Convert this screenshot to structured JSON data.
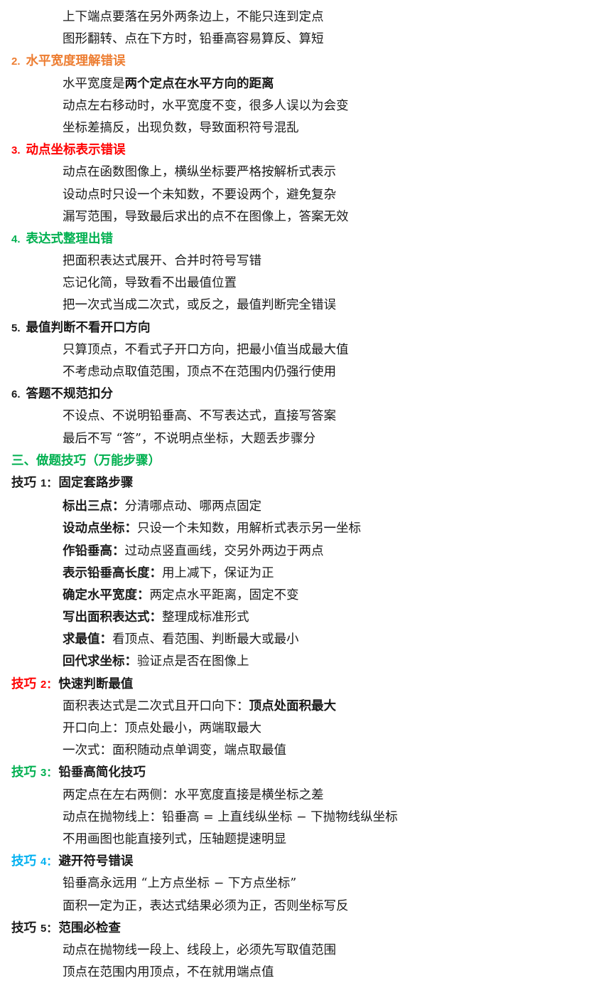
{
  "colors": {
    "orange": "#ED7D31",
    "red": "#FF0000",
    "green": "#00B050",
    "blue": "#00B0F0",
    "black": "#1a1a1a"
  },
  "lines": [
    {
      "kind": "body",
      "segs": [
        {
          "t": "上下端点要落在另外两条边上，不能只连到定点"
        }
      ]
    },
    {
      "kind": "body",
      "segs": [
        {
          "t": "图形翻转、点在下方时，铅垂高容易算反、算短"
        }
      ]
    },
    {
      "kind": "head",
      "color": "orange",
      "num": "2.",
      "segs": [
        {
          "t": "水平宽度理解错误"
        }
      ]
    },
    {
      "kind": "body",
      "segs": [
        {
          "t": "水平宽度是"
        },
        {
          "t": "两个定点在水平方向的距离",
          "b": true
        }
      ]
    },
    {
      "kind": "body",
      "segs": [
        {
          "t": "动点左右移动时，水平宽度不变，很多人误以为会变"
        }
      ]
    },
    {
      "kind": "body",
      "segs": [
        {
          "t": "坐标差搞反，出现负数，导致面积符号混乱"
        }
      ]
    },
    {
      "kind": "head",
      "color": "red",
      "num": "3.",
      "segs": [
        {
          "t": "动点坐标表示错误"
        }
      ]
    },
    {
      "kind": "body",
      "segs": [
        {
          "t": "动点在函数图像上，横纵坐标要严格按解析式表示"
        }
      ]
    },
    {
      "kind": "body",
      "segs": [
        {
          "t": "设动点时只设一个未知数，不要设两个，避免复杂"
        }
      ]
    },
    {
      "kind": "body",
      "segs": [
        {
          "t": "漏写范围，导致最后求出的点不在图像上，答案无效"
        }
      ]
    },
    {
      "kind": "head",
      "color": "green",
      "num": "4.",
      "segs": [
        {
          "t": "表达式整理出错"
        }
      ]
    },
    {
      "kind": "body",
      "segs": [
        {
          "t": "把面积表达式展开、合并时符号写错"
        }
      ]
    },
    {
      "kind": "body",
      "segs": [
        {
          "t": "忘记化简，导致看不出最值位置"
        }
      ]
    },
    {
      "kind": "body",
      "segs": [
        {
          "t": "把一次式当成二次式，或反之，最值判断完全错误"
        }
      ]
    },
    {
      "kind": "head",
      "color": "black",
      "num": "5.",
      "segs": [
        {
          "t": "最值判断不看开口方向"
        }
      ]
    },
    {
      "kind": "body",
      "segs": [
        {
          "t": "只算顶点，不看式子开口方向，把最小值当成最大值"
        }
      ]
    },
    {
      "kind": "body",
      "segs": [
        {
          "t": "不考虑动点取值范围，顶点不在范围内仍强行使用"
        }
      ]
    },
    {
      "kind": "head",
      "color": "black",
      "num": "6.",
      "segs": [
        {
          "t": "答题不规范扣分"
        }
      ]
    },
    {
      "kind": "body",
      "segs": [
        {
          "t": "不设点、不说明铅垂高、不写表达式，直接写答案"
        }
      ]
    },
    {
      "kind": "body",
      "segs": [
        {
          "t": "最后不写 “答”，不说明点坐标，大题丢步骤分"
        }
      ]
    },
    {
      "kind": "head",
      "color": "green",
      "segs": [
        {
          "t": "三、做题技巧（万能步骤）",
          "c": "green"
        }
      ]
    },
    {
      "kind": "head",
      "color": "black",
      "label": "技巧",
      "num": "1：",
      "gap": true,
      "segs": [
        {
          "t": "固定套路步骤"
        }
      ]
    },
    {
      "kind": "body",
      "segs": [
        {
          "t": "标出三点：",
          "b": true
        },
        {
          "t": "分清哪点动、哪两点固定"
        }
      ]
    },
    {
      "kind": "body",
      "segs": [
        {
          "t": "设动点坐标：",
          "b": true
        },
        {
          "t": "只设一个未知数，用解析式表示另一坐标"
        }
      ]
    },
    {
      "kind": "body",
      "segs": [
        {
          "t": "作铅垂高：",
          "b": true
        },
        {
          "t": "过动点竖直画线，交另外两边于两点"
        }
      ]
    },
    {
      "kind": "body",
      "segs": [
        {
          "t": "表示铅垂高长度：",
          "b": true
        },
        {
          "t": "用上减下，保证为正"
        }
      ]
    },
    {
      "kind": "body",
      "segs": [
        {
          "t": "确定水平宽度：",
          "b": true
        },
        {
          "t": "两定点水平距离，固定不变"
        }
      ]
    },
    {
      "kind": "body",
      "segs": [
        {
          "t": "写出面积表达式：",
          "b": true
        },
        {
          "t": "整理成标准形式"
        }
      ]
    },
    {
      "kind": "body",
      "segs": [
        {
          "t": "求最值：",
          "b": true
        },
        {
          "t": "看顶点、看范围、判断最大或最小"
        }
      ]
    },
    {
      "kind": "body",
      "segs": [
        {
          "t": "回代求坐标：",
          "b": true
        },
        {
          "t": "验证点是否在图像上"
        }
      ]
    },
    {
      "kind": "head",
      "color": "red",
      "label": "技巧",
      "num": "2：",
      "segs": [
        {
          "t": "快速判断最值"
        }
      ]
    },
    {
      "kind": "body",
      "segs": [
        {
          "t": "面积表达式是二次式且开口向下："
        },
        {
          "t": "顶点处面积最大",
          "b": true
        }
      ]
    },
    {
      "kind": "body",
      "segs": [
        {
          "t": "开口向上：顶点处最小，两端取最大"
        }
      ]
    },
    {
      "kind": "body",
      "segs": [
        {
          "t": "一次式：面积随动点单调变，端点取最值"
        }
      ]
    },
    {
      "kind": "head",
      "color": "green",
      "label": "技巧",
      "num": "3：",
      "segs": [
        {
          "t": "铅垂高简化技巧"
        }
      ]
    },
    {
      "kind": "body",
      "segs": [
        {
          "t": "两定点在左右两侧：水平宽度直接是横坐标之差"
        }
      ]
    },
    {
      "kind": "body",
      "segs": [
        {
          "t": "动点在抛物线上：铅垂高 = 上直线纵坐标 − 下抛物线纵坐标"
        }
      ]
    },
    {
      "kind": "body",
      "segs": [
        {
          "t": "不用画图也能直接列式，压轴题提速明显"
        }
      ]
    },
    {
      "kind": "head",
      "color": "blue",
      "label": "技巧",
      "num": "4：",
      "segs": [
        {
          "t": "避开符号错误"
        }
      ]
    },
    {
      "kind": "body",
      "segs": [
        {
          "t": "铅垂高永远用 “上方点坐标 − 下方点坐标”"
        }
      ]
    },
    {
      "kind": "body",
      "segs": [
        {
          "t": "面积一定为正，表达式结果必须为正，否则坐标写反"
        }
      ]
    },
    {
      "kind": "head",
      "color": "black",
      "label": "技巧",
      "num": "5：",
      "segs": [
        {
          "t": "范围必检查"
        }
      ]
    },
    {
      "kind": "body",
      "segs": [
        {
          "t": "动点在抛物线一段上、线段上，必须先写取值范围"
        }
      ]
    },
    {
      "kind": "body",
      "segs": [
        {
          "t": "顶点在范围内用顶点，不在就用端点值"
        }
      ]
    }
  ]
}
